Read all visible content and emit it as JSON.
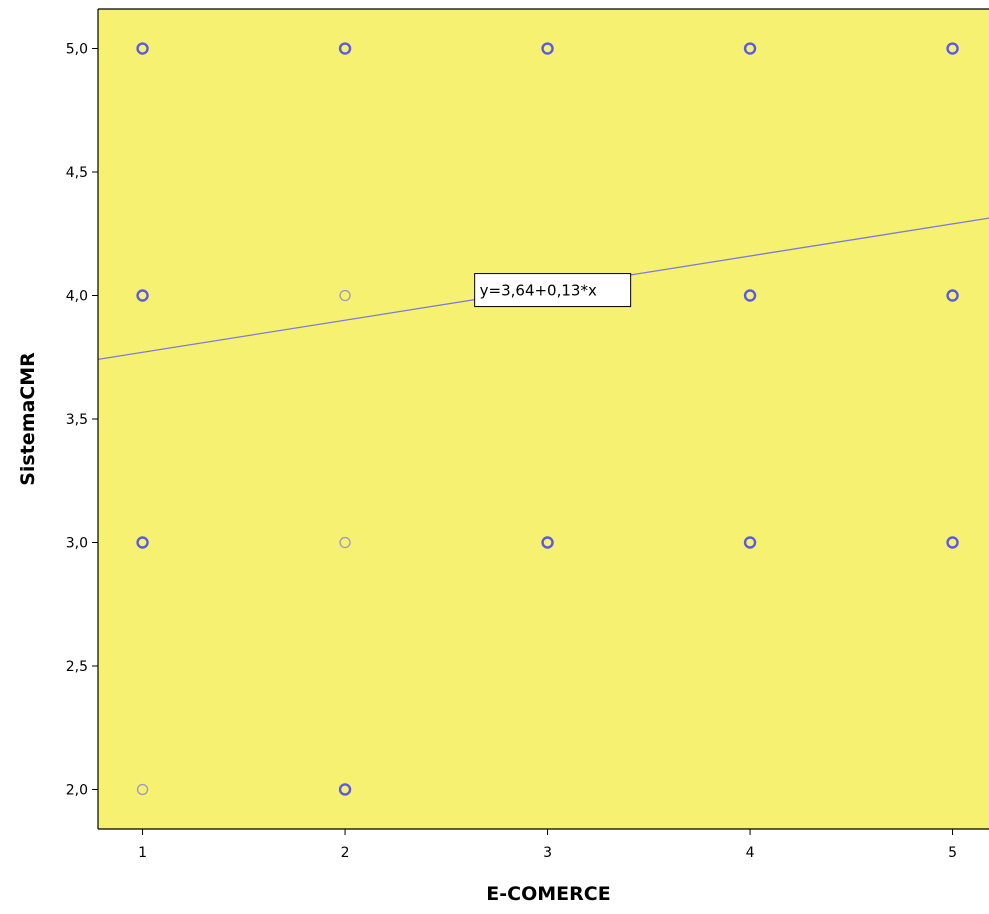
{
  "chart_data": {
    "type": "scatter",
    "title": "",
    "xlabel": "E-COMERCE",
    "ylabel": "SistemaCMR",
    "xlim": [
      0.78,
      5.18
    ],
    "ylim": [
      1.84,
      5.16
    ],
    "x_ticks": [
      1,
      2,
      3,
      4,
      5
    ],
    "x_tick_labels": [
      "1",
      "2",
      "3",
      "4",
      "5"
    ],
    "y_ticks": [
      2.0,
      2.5,
      3.0,
      3.5,
      4.0,
      4.5,
      5.0
    ],
    "y_tick_labels": [
      "2,0",
      "2,5",
      "3,0",
      "3,5",
      "4,0",
      "4,5",
      "5,0"
    ],
    "grid": false,
    "background_color": "#f7f172",
    "marker_color": "#5a5ae6",
    "line_color": "#7b7bdc",
    "points": [
      {
        "x": 1,
        "y": 5,
        "bold": true
      },
      {
        "x": 2,
        "y": 5,
        "bold": true
      },
      {
        "x": 3,
        "y": 5,
        "bold": true
      },
      {
        "x": 4,
        "y": 5,
        "bold": true
      },
      {
        "x": 5,
        "y": 5,
        "bold": true
      },
      {
        "x": 1,
        "y": 4,
        "bold": true
      },
      {
        "x": 2,
        "y": 4,
        "bold": false
      },
      {
        "x": 4,
        "y": 4,
        "bold": true
      },
      {
        "x": 5,
        "y": 4,
        "bold": true
      },
      {
        "x": 1,
        "y": 3,
        "bold": true
      },
      {
        "x": 2,
        "y": 3,
        "bold": false
      },
      {
        "x": 3,
        "y": 3,
        "bold": true
      },
      {
        "x": 4,
        "y": 3,
        "bold": true
      },
      {
        "x": 5,
        "y": 3,
        "bold": true
      },
      {
        "x": 1,
        "y": 2,
        "bold": false
      },
      {
        "x": 2,
        "y": 2,
        "bold": true
      }
    ],
    "fit_line": {
      "intercept": 3.64,
      "slope": 0.13
    },
    "fit_label": "y=3,64+0,13*x",
    "fit_label_anchor": {
      "x": 2.64,
      "y": 4.02
    }
  }
}
